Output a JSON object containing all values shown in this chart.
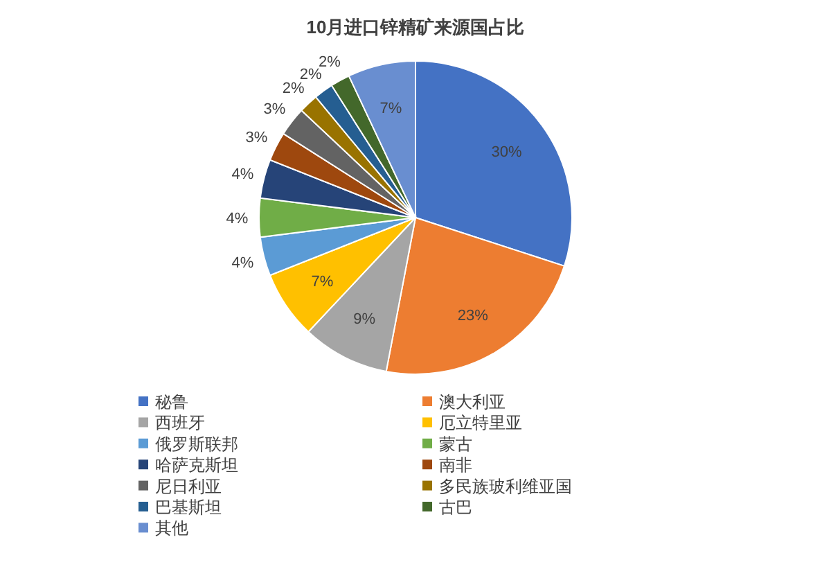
{
  "chart_data": {
    "type": "pie",
    "title": "10月进口锌精矿来源国占比",
    "categories": [
      "秘鲁",
      "澳大利亚",
      "西班牙",
      "厄立特里亚",
      "俄罗斯联邦",
      "蒙古",
      "哈萨克斯坦",
      "南非",
      "尼日利亚",
      "多民族玻利维亚国",
      "巴基斯坦",
      "古巴",
      "其他"
    ],
    "values": [
      30,
      23,
      9,
      7,
      4,
      4,
      4,
      3,
      3,
      2,
      2,
      2,
      7
    ],
    "colors": [
      "#4472c4",
      "#ed7d31",
      "#a5a5a5",
      "#ffc000",
      "#5b9bd5",
      "#70ad47",
      "#264478",
      "#9e480e",
      "#636363",
      "#997300",
      "#255e91",
      "#43682b",
      "#698ed0"
    ],
    "value_labels": [
      "30%",
      "23%",
      "9%",
      "7%",
      "4%",
      "4%",
      "4%",
      "3%",
      "3%",
      "2%",
      "2%",
      "2%",
      "7%"
    ],
    "legend": "bottom"
  }
}
